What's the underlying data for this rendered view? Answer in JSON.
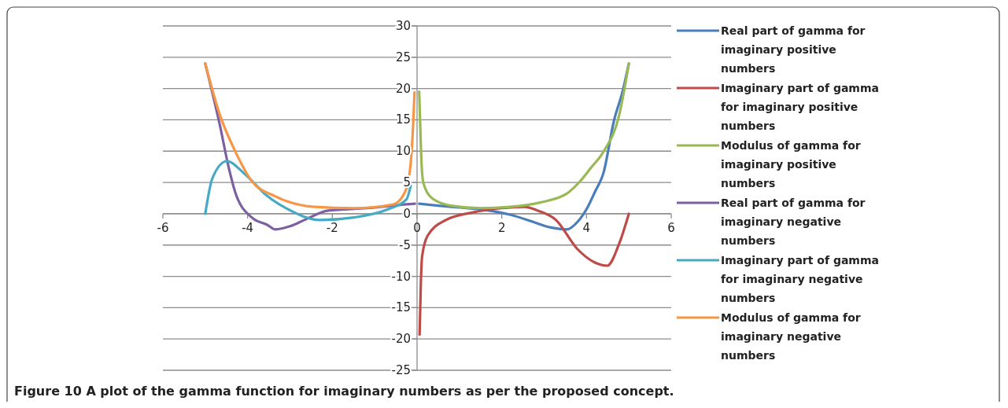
{
  "chart_data": {
    "type": "line",
    "annotations": [
      "Figure 10 A plot of the gamma function for imaginary numbers as per the proposed concept."
    ],
    "xlim": [
      -6,
      6
    ],
    "xticks": [
      -6,
      -4,
      -2,
      0,
      2,
      4,
      6
    ],
    "ylim": [
      -25,
      30
    ],
    "yticks": [
      -25,
      -20,
      -15,
      -10,
      -5,
      0,
      5,
      10,
      15,
      20,
      25,
      30
    ],
    "grid": "y",
    "legend": "right",
    "line_style": "solid",
    "marker": "none",
    "series": [
      {
        "name": "Real part of gamma for imaginary positive numbers",
        "color": "#4a7ebb",
        "x": [
          0.05,
          0.5,
          1,
          1.49,
          2.23,
          2.7,
          3.16,
          3.53,
          3.8,
          4.03,
          4.2,
          4.4,
          4.65,
          4.85,
          5.0
        ],
        "values": [
          1.6,
          1.3,
          1,
          0.7,
          -0.2,
          -1.2,
          -2.2,
          -2.5,
          -1.2,
          1.1,
          3.5,
          6.5,
          14.9,
          19.5,
          24
        ]
      },
      {
        "name": "Imaginary part of gamma for imaginary positive numbers",
        "color": "#be4b48",
        "x": [
          0.06,
          0.09,
          0.12,
          0.25,
          0.68,
          1.3,
          2,
          2.54,
          2.85,
          3.28,
          3.78,
          4.2,
          4.49,
          4.77,
          5.0
        ],
        "values": [
          -19.3,
          -11,
          -6.8,
          -3.5,
          -1,
          0.2,
          0.9,
          1.1,
          0.5,
          -1,
          -5.6,
          -7.8,
          -8.3,
          -4.8,
          0
        ]
      },
      {
        "name": "Modulus of gamma for imaginary positive numbers",
        "color": "#98b954",
        "x": [
          0.05,
          0.08,
          0.1,
          0.15,
          0.37,
          0.8,
          1.5,
          2.2,
          2.9,
          3.53,
          3.85,
          4.1,
          4.4,
          4.78,
          5.0
        ],
        "values": [
          19.5,
          13,
          9,
          4.9,
          2.4,
          1.3,
          0.9,
          1.1,
          1.8,
          3.2,
          5.2,
          7.3,
          9.9,
          16,
          24
        ]
      },
      {
        "name": "Real part of gamma for imaginary negative numbers",
        "color": "#7d60a0",
        "x": [
          -5.0,
          -4.65,
          -4.46,
          -4.28,
          -3.9,
          -3.53,
          -3.35,
          -3.0,
          -2.66,
          -2.1,
          -1.18,
          -0.25,
          -0.05
        ],
        "values": [
          24,
          14,
          7.8,
          3.2,
          -0.6,
          -1.8,
          -2.5,
          -2.0,
          -1,
          0.5,
          0.9,
          1.5,
          1.6
        ]
      },
      {
        "name": "Imaginary part of gamma for imaginary negative numbers",
        "color": "#46aac5",
        "x": [
          -5.0,
          -4.83,
          -4.49,
          -4.09,
          -3.53,
          -3.04,
          -2.29,
          -1.49,
          -0.69,
          -0.25,
          -0.15
        ],
        "values": [
          0,
          5.7,
          8.4,
          6.5,
          2.8,
          0.7,
          -1.0,
          -0.6,
          0.7,
          2.3,
          4.5
        ]
      },
      {
        "name": "Modulus of gamma for imaginary negative numbers",
        "color": "#f79646",
        "x": [
          -5.0,
          -4.65,
          -4.28,
          -3.9,
          -3.35,
          -2.42,
          -1.49,
          -0.56,
          -0.25,
          -0.12,
          -0.06
        ],
        "values": [
          24,
          15.7,
          9.8,
          5.2,
          2.8,
          1.1,
          0.9,
          1.5,
          4,
          10.7,
          19.4
        ]
      }
    ]
  }
}
